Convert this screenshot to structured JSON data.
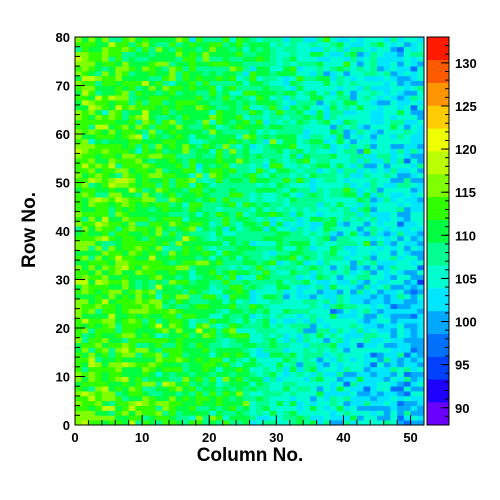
{
  "chart_data": {
    "type": "heatmap",
    "title": "",
    "xlabel": "Column No.",
    "ylabel": "Row No.",
    "xlim": [
      0,
      52
    ],
    "ylim": [
      0,
      80
    ],
    "x_ticks": [
      0,
      10,
      20,
      30,
      40,
      50
    ],
    "y_ticks": [
      0,
      10,
      20,
      30,
      40,
      50,
      60,
      70,
      80
    ],
    "n_columns": 52,
    "n_rows": 80,
    "z_range": [
      88,
      133
    ],
    "colorbar_ticks": [
      90,
      95,
      100,
      105,
      110,
      115,
      120,
      125,
      130
    ],
    "colorbar_position": "right",
    "grid": false,
    "palette": [
      "#6a00ff",
      "#1e00ff",
      "#0040ff",
      "#0070ff",
      "#00a8ff",
      "#00e6ff",
      "#00ffd0",
      "#00ff90",
      "#00ff40",
      "#30ff00",
      "#80ff00",
      "#bbff00",
      "#eeff00",
      "#ffcc00",
      "#ff9600",
      "#ff5a00",
      "#ff1a00"
    ],
    "value_model": {
      "description": "z values decrease with column index (~113 at left to ~103 at right) with cell-level scatter",
      "left_mean": 113.5,
      "right_mean": 103,
      "noise_sd": 4.5
    }
  }
}
